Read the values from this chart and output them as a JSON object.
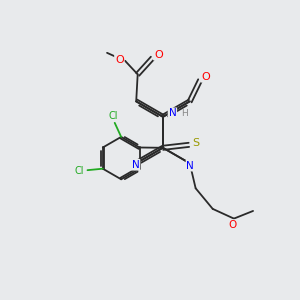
{
  "background_color": "#e8eaec",
  "bond_color": "#2a2a2a",
  "figsize": [
    3.0,
    3.0
  ],
  "dpi": 100,
  "xlim": [
    0,
    10
  ],
  "ylim": [
    0,
    10
  ]
}
